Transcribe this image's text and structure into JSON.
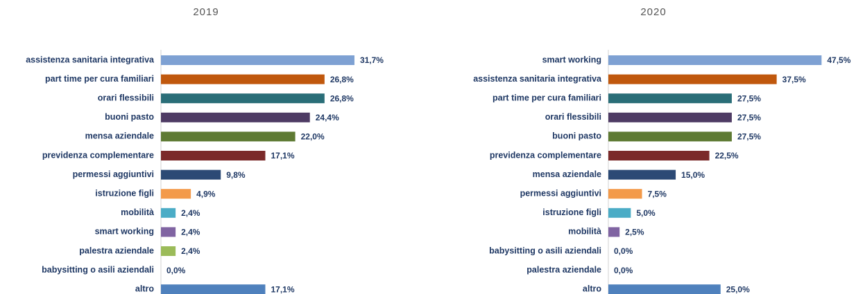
{
  "chart_data": [
    {
      "type": "barh",
      "title": "2019",
      "categories": [
        "assistenza sanitaria integrativa",
        "part time per cura familiari",
        "orari flessibili",
        "buoni pasto",
        "mensa aziendale",
        "previdenza complementare",
        "permessi aggiuntivi",
        "istruzione figli",
        "mobilità",
        "smart working",
        "palestra aziendale",
        "babysitting o asili aziendali",
        "altro"
      ],
      "values": [
        31.7,
        26.8,
        26.8,
        24.4,
        22.0,
        17.1,
        9.8,
        4.9,
        2.4,
        2.4,
        2.4,
        0.0,
        17.1
      ],
      "value_labels": [
        "31,7%",
        "26,8%",
        "26,8%",
        "24,4%",
        "22,0%",
        "17,1%",
        "9,8%",
        "4,9%",
        "2,4%",
        "2,4%",
        "2,4%",
        "0,0%",
        "17,1%"
      ],
      "colors": [
        "#7ea1d3",
        "#c0580d",
        "#2a6e78",
        "#4e3b64",
        "#5e7a33",
        "#7b2a2a",
        "#2c4a75",
        "#f39a4a",
        "#4bacc6",
        "#8064a2",
        "#9bbb59",
        "#9bbb59",
        "#4f81bd"
      ],
      "xlim": [
        0,
        37.5
      ]
    },
    {
      "type": "barh",
      "title": "2020",
      "categories": [
        "smart working",
        "assistenza sanitaria integrativa",
        "part time per cura familiari",
        "orari flessibili",
        "buoni pasto",
        "previdenza complementare",
        "mensa aziendale",
        "permessi aggiuntivi",
        "istruzione figli",
        "mobilità",
        "babysitting o asili aziendali",
        "palestra aziendale",
        "altro"
      ],
      "values": [
        47.5,
        37.5,
        27.5,
        27.5,
        27.5,
        22.5,
        15.0,
        7.5,
        5.0,
        2.5,
        0.0,
        0.0,
        25.0
      ],
      "value_labels": [
        "47,5%",
        "37,5%",
        "27,5%",
        "27,5%",
        "27,5%",
        "22,5%",
        "15,0%",
        "7,5%",
        "5,0%",
        "2,5%",
        "0,0%",
        "0,0%",
        "25,0%"
      ],
      "colors": [
        "#7ea1d3",
        "#c0580d",
        "#2a6e78",
        "#4e3b64",
        "#5e7a33",
        "#7b2a2a",
        "#2c4a75",
        "#f39a4a",
        "#4bacc6",
        "#8064a2",
        "#9bbb59",
        "#9bbb59",
        "#4f81bd"
      ],
      "xlim": [
        0,
        51
      ]
    }
  ]
}
